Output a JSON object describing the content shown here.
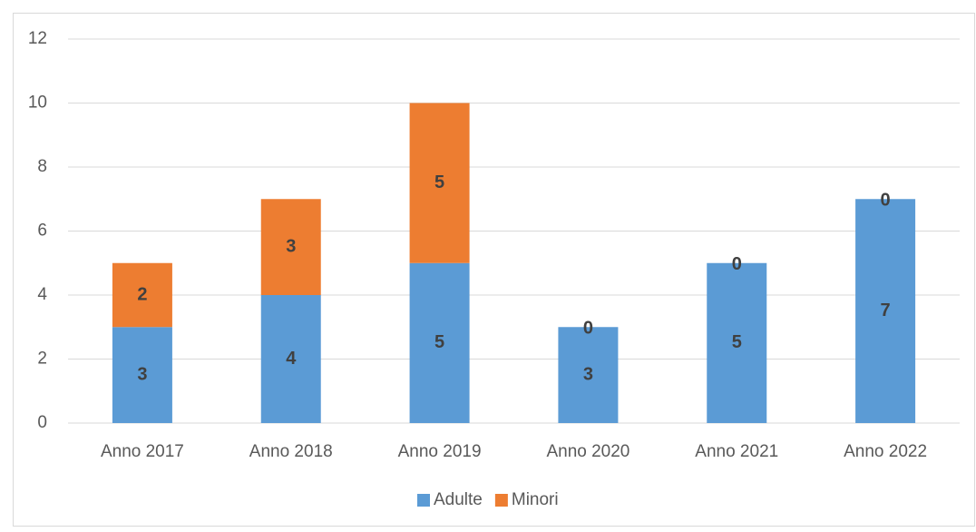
{
  "chart_data": {
    "type": "bar",
    "stacked": true,
    "categories": [
      "Anno 2017",
      "Anno 2018",
      "Anno 2019",
      "Anno 2020",
      "Anno 2021",
      "Anno 2022"
    ],
    "series": [
      {
        "name": "Adulte",
        "color": "#5b9bd5",
        "values": [
          3,
          4,
          5,
          3,
          5,
          7
        ]
      },
      {
        "name": "Minori",
        "color": "#ed7d31",
        "values": [
          2,
          3,
          5,
          0,
          0,
          0
        ]
      }
    ],
    "ylim": [
      0,
      12
    ],
    "yticks": [
      0,
      2,
      4,
      6,
      8,
      10,
      12
    ],
    "grid": true,
    "legend": "bottom"
  }
}
